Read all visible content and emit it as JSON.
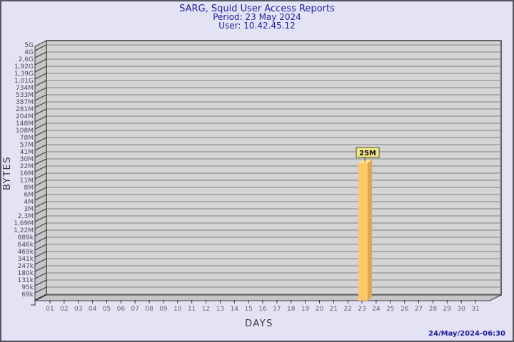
{
  "chart_data": {
    "type": "bar",
    "title": "SARG, Squid User Access Reports",
    "subtitle_period": "Period: 23 May 2024",
    "subtitle_user": "User: 10.42.45.12",
    "xlabel": "DAYS",
    "ylabel": "BYTES",
    "y_scale": "log",
    "y_range": [
      "69k",
      "5G"
    ],
    "grid": "horizontal",
    "legend": "none",
    "y_ticks": [
      "5G",
      "4G",
      "2,6G",
      "1,92G",
      "1,39G",
      "1,01G",
      "734M",
      "533M",
      "387M",
      "281M",
      "204M",
      "148M",
      "108M",
      "78M",
      "57M",
      "41M",
      "30M",
      "22M",
      "16M",
      "11M",
      "8M",
      "6M",
      "4M",
      "3M",
      "2,3M",
      "1,69M",
      "1,22M",
      "889k",
      "646k",
      "469k",
      "341k",
      "247k",
      "180k",
      "131k",
      "95k",
      "69k"
    ],
    "x_ticks": [
      "01",
      "02",
      "03",
      "04",
      "05",
      "06",
      "07",
      "08",
      "09",
      "10",
      "11",
      "12",
      "13",
      "14",
      "15",
      "16",
      "17",
      "18",
      "19",
      "20",
      "21",
      "22",
      "23",
      "24",
      "25",
      "26",
      "27",
      "28",
      "29",
      "30",
      "31"
    ],
    "series": [
      {
        "name": "bytes",
        "values": [
          0,
          0,
          0,
          0,
          0,
          0,
          0,
          0,
          0,
          0,
          0,
          0,
          0,
          0,
          0,
          0,
          0,
          0,
          0,
          0,
          0,
          0,
          25000000,
          0,
          0,
          0,
          0,
          0,
          0,
          0,
          0
        ]
      }
    ],
    "annotations": [
      {
        "day": "23",
        "text": "25M"
      }
    ],
    "colors": {
      "background": "#e3e3f5",
      "plot_background": "#d4d4d4",
      "wall": "#c6c6c6",
      "gridline": "#828282",
      "frame": "#3a3a3a",
      "bar_front": "#fec768",
      "bar_side": "#dfa64f",
      "bar_top": "#ffdf9b",
      "annotation_bg": "#f0e68c",
      "annotation_border": "#55551e",
      "annotation_text": "#111111",
      "title": "#22229b",
      "axis_text": "#4c4c4c",
      "day_text": "#666666"
    }
  },
  "footer": {
    "timestamp": "24/May/2024-06:30"
  }
}
